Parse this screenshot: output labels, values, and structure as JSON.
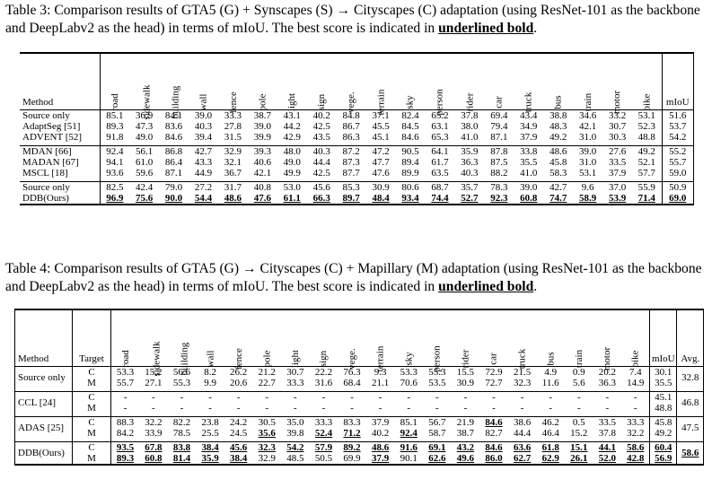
{
  "table3": {
    "caption_prefix": "Table 3: Comparison results of GTA5 (G) + Synscapes (S) → Cityscapes (C) adaptation (using ResNet-101 as the backbone and DeepLabv2 as the head) in terms of mIoU. The best score is indicated in ",
    "caption_emph": "underlined bold",
    "caption_suffix": ".",
    "method_header": "Method",
    "miou_header": "mIoU",
    "classes": [
      "road",
      "sidewalk",
      "building",
      "wall",
      "fence",
      "pole",
      "light",
      "sign",
      "vege.",
      "terrain",
      "sky",
      "person",
      "rider",
      "car",
      "truck",
      "bus",
      "train",
      "motor",
      "bike"
    ],
    "groups": [
      [
        {
          "method": "Source only",
          "values": [
            "85.1",
            "36.9",
            "84.1",
            "39.0",
            "33.3",
            "38.7",
            "43.1",
            "40.2",
            "84.8",
            "37.1",
            "82.4",
            "65.2",
            "37.8",
            "69.4",
            "43.4",
            "38.8",
            "34.6",
            "33.2",
            "53.1"
          ],
          "miou": "51.6"
        },
        {
          "method": "AdaptSeg [51]",
          "values": [
            "89.3",
            "47.3",
            "83.6",
            "40.3",
            "27.8",
            "39.0",
            "44.2",
            "42.5",
            "86.7",
            "45.5",
            "84.5",
            "63.1",
            "38.0",
            "79.4",
            "34.9",
            "48.3",
            "42.1",
            "30.7",
            "52.3"
          ],
          "miou": "53.7"
        },
        {
          "method": "ADVENT [52]",
          "values": [
            "91.8",
            "49.0",
            "84.6",
            "39.4",
            "31.5",
            "39.9",
            "42.9",
            "43.5",
            "86.3",
            "45.1",
            "84.6",
            "65.3",
            "41.0",
            "87.1",
            "37.9",
            "49.2",
            "31.0",
            "30.3",
            "48.8"
          ],
          "miou": "54.2"
        }
      ],
      [
        {
          "method": "MDAN [66]",
          "values": [
            "92.4",
            "56.1",
            "86.8",
            "42.7",
            "32.9",
            "39.3",
            "48.0",
            "40.3",
            "87.2",
            "47.2",
            "90.5",
            "64.1",
            "35.9",
            "87.8",
            "33.8",
            "48.6",
            "39.0",
            "27.6",
            "49.2"
          ],
          "miou": "55.2"
        },
        {
          "method": "MADAN [67]",
          "values": [
            "94.1",
            "61.0",
            "86.4",
            "43.3",
            "32.1",
            "40.6",
            "49.0",
            "44.4",
            "87.3",
            "47.7",
            "89.4",
            "61.7",
            "36.3",
            "87.5",
            "35.5",
            "45.8",
            "31.0",
            "33.5",
            "52.1"
          ],
          "miou": "55.7"
        },
        {
          "method": "MSCL [18]",
          "values": [
            "93.6",
            "59.6",
            "87.1",
            "44.9",
            "36.7",
            "42.1",
            "49.9",
            "42.5",
            "87.7",
            "47.6",
            "89.9",
            "63.5",
            "40.3",
            "88.2",
            "41.0",
            "58.3",
            "53.1",
            "37.9",
            "57.7"
          ],
          "miou": "59.0"
        }
      ],
      [
        {
          "method": "Source only",
          "values": [
            "82.5",
            "42.4",
            "79.0",
            "27.2",
            "31.7",
            "40.8",
            "53.0",
            "45.6",
            "85.3",
            "30.9",
            "80.6",
            "68.7",
            "35.7",
            "78.3",
            "39.0",
            "42.7",
            "9.6",
            "37.0",
            "55.9"
          ],
          "miou": "50.9"
        },
        {
          "method": "DDB(Ours)",
          "values": [
            "96.9",
            "75.6",
            "90.0",
            "54.4",
            "48.6",
            "47.6",
            "61.1",
            "66.3",
            "89.7",
            "48.4",
            "93.4",
            "74.4",
            "52.7",
            "92.3",
            "60.8",
            "74.7",
            "58.9",
            "53.9",
            "71.4"
          ],
          "miou": "69.0",
          "best": true
        }
      ]
    ]
  },
  "table4": {
    "caption_prefix": "Table 4: Comparison results of GTA5 (G) → Cityscapes (C) + Mapillary (M) adaptation (using ResNet-101 as the backbone and DeepLabv2 as the head) in terms of mIoU. The best score is indicated in ",
    "caption_emph": "underlined bold",
    "caption_suffix": ".",
    "method_header": "Method",
    "target_header": "Target",
    "miou_header": "mIoU",
    "avg_header": "Avg.",
    "classes": [
      "road",
      "sidewalk",
      "building",
      "wall",
      "fence",
      "pole",
      "light",
      "sign",
      "vege.",
      "terrain",
      "sky",
      "person",
      "rider",
      "car",
      "truck",
      "bus",
      "train",
      "motor",
      "bike"
    ],
    "groups": [
      {
        "method": "Source only",
        "avg": "32.8",
        "rows": [
          {
            "target": "C",
            "values": [
              "53.3",
              "15.2",
              "56.6",
              "8.2",
              "26.2",
              "21.2",
              "30.7",
              "22.2",
              "76.3",
              "9.3",
              "53.3",
              "55.3",
              "15.5",
              "72.9",
              "21.5",
              "4.9",
              "0.9",
              "20.2",
              "7.4"
            ],
            "miou": "30.1"
          },
          {
            "target": "M",
            "values": [
              "55.7",
              "27.1",
              "55.3",
              "9.9",
              "20.6",
              "22.7",
              "33.3",
              "31.6",
              "68.4",
              "21.1",
              "70.6",
              "53.5",
              "30.9",
              "72.7",
              "32.3",
              "11.6",
              "5.6",
              "36.3",
              "14.9"
            ],
            "miou": "35.5"
          }
        ]
      },
      {
        "method": "CCL [24]",
        "avg": "46.8",
        "rows": [
          {
            "target": "C",
            "values": [
              "-",
              "-",
              "-",
              "-",
              "-",
              "-",
              "-",
              "-",
              "-",
              "-",
              "-",
              "-",
              "-",
              "-",
              "-",
              "-",
              "-",
              "-",
              "-"
            ],
            "miou": "45.1"
          },
          {
            "target": "M",
            "values": [
              "-",
              "-",
              "-",
              "-",
              "-",
              "-",
              "-",
              "-",
              "-",
              "-",
              "-",
              "-",
              "-",
              "-",
              "-",
              "-",
              "-",
              "-",
              "-"
            ],
            "miou": "48.8"
          }
        ]
      },
      {
        "method": "ADAS [25]",
        "avg": "47.5",
        "rows": [
          {
            "target": "C",
            "values": [
              "88.3",
              "32.2",
              "82.2",
              "23.8",
              "24.2",
              "30.5",
              "35.0",
              "33.3",
              "83.3",
              "37.9",
              "85.1",
              "56.7",
              "21.9",
              "84.6",
              "38.6",
              "46.2",
              "0.5",
              "33.5",
              "33.3"
            ],
            "miou": "45.8",
            "bold": [
              13
            ]
          },
          {
            "target": "M",
            "values": [
              "84.2",
              "33.9",
              "78.5",
              "25.5",
              "24.5",
              "35.6",
              "39.8",
              "52.4",
              "71.2",
              "40.2",
              "92.4",
              "58.7",
              "38.7",
              "82.7",
              "44.4",
              "46.4",
              "15.2",
              "37.8",
              "32.2"
            ],
            "miou": "49.2",
            "bold": [
              5,
              7,
              8,
              10
            ]
          }
        ]
      },
      {
        "method": "DDB(Ours)",
        "avg": "58.6",
        "avg_best": true,
        "rows": [
          {
            "target": "C",
            "values": [
              "93.5",
              "67.8",
              "83.8",
              "38.4",
              "45.6",
              "32.3",
              "54.2",
              "57.9",
              "89.2",
              "48.6",
              "91.6",
              "69.1",
              "43.2",
              "84.6",
              "63.6",
              "61.8",
              "15.1",
              "44.1",
              "58.6"
            ],
            "miou": "60.4",
            "bold": [
              0,
              1,
              2,
              3,
              4,
              5,
              6,
              7,
              8,
              9,
              10,
              11,
              12,
              13,
              14,
              15,
              16,
              17,
              18
            ],
            "miou_best": true
          },
          {
            "target": "M",
            "values": [
              "89.3",
              "60.8",
              "81.4",
              "35.9",
              "38.4",
              "32.9",
              "48.5",
              "50.5",
              "69.9",
              "37.9",
              "90.1",
              "62.6",
              "49.6",
              "86.0",
              "62.7",
              "62.9",
              "26.1",
              "52.0",
              "42.8"
            ],
            "miou": "56.9",
            "bold": [
              0,
              1,
              2,
              3,
              4,
              9,
              11,
              12,
              13,
              14,
              15,
              16,
              17,
              18
            ],
            "miou_best": true
          }
        ]
      }
    ]
  }
}
